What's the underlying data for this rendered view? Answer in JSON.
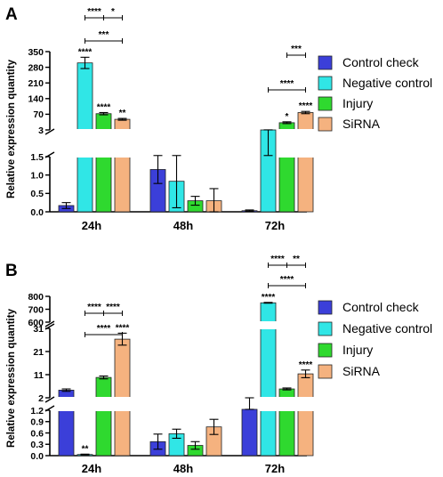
{
  "chart_data": [
    {
      "type": "bar",
      "panel_label": "A",
      "ylabel": "Relative expression quantity",
      "categories": [
        "24h",
        "48h",
        "72h"
      ],
      "series": [
        {
          "name": "Control check",
          "color": "#3b3fd9",
          "values": [
            0.17,
            1.15,
            0.03
          ],
          "errors": [
            0.08,
            0.38,
            0.02
          ]
        },
        {
          "name": "Negative control",
          "color": "#30e6e6",
          "values": [
            300,
            0.83,
            3
          ],
          "errors": [
            25,
            0.72,
            0.3
          ]
        },
        {
          "name": "Injury",
          "color": "#2fd92f",
          "values": [
            75,
            0.3,
            35
          ],
          "errors": [
            5,
            0.12,
            4
          ]
        },
        {
          "name": "SiRNA",
          "color": "#f5b27f",
          "values": [
            50,
            0.3,
            80
          ],
          "errors": [
            4,
            0.33,
            5
          ]
        }
      ],
      "y_axis": {
        "segments": [
          {
            "range": [
              0,
              1.5
            ],
            "ticks": [
              "0.0",
              "0.5",
              "1.0",
              "1.5"
            ]
          },
          {
            "range": [
              3,
              350
            ],
            "ticks": [
              "3",
              "70",
              "140",
              "210",
              "280",
              "350"
            ]
          }
        ]
      },
      "bar_labels": [
        [
          "",
          "",
          ""
        ],
        [
          "****",
          "",
          ""
        ],
        [
          "****",
          "",
          "*"
        ],
        [
          "**",
          "",
          "****"
        ]
      ],
      "brackets": [
        {
          "category": 0,
          "from_series": 1,
          "to_series": 3,
          "mid_series": 2,
          "label_left": "****",
          "label_right": "*"
        },
        {
          "category": 0,
          "from_series": 1,
          "to_series": 3,
          "label": "***"
        },
        {
          "category": 2,
          "from_series": 2,
          "to_series": 3,
          "label": "***"
        },
        {
          "category": 2,
          "from_series": 1,
          "to_series": 3,
          "label": "****"
        }
      ]
    },
    {
      "type": "bar",
      "panel_label": "B",
      "ylabel": "Relative expression quantity",
      "categories": [
        "24h",
        "48h",
        "72h"
      ],
      "series": [
        {
          "name": "Control check",
          "color": "#3b3fd9",
          "values": [
            5.2,
            0.37,
            1.8
          ],
          "errors": [
            0.5,
            0.2,
            0.2
          ]
        },
        {
          "name": "Negative control",
          "color": "#30e6e6",
          "values": [
            0.03,
            0.58,
            750
          ],
          "errors": [
            0.01,
            0.12,
            3
          ]
        },
        {
          "name": "Injury",
          "color": "#2fd92f",
          "values": [
            10.5,
            0.27,
            5.7
          ],
          "errors": [
            0.6,
            0.1,
            0.4
          ]
        },
        {
          "name": "SiRNA",
          "color": "#f5b27f",
          "values": [
            26.5,
            0.76,
            12
          ],
          "errors": [
            2.5,
            0.2,
            1.6
          ]
        }
      ],
      "y_axis": {
        "segments": [
          {
            "range": [
              0,
              1.2
            ],
            "ticks": [
              "0.0",
              "0.3",
              "0.6",
              "0.9",
              "1.2"
            ]
          },
          {
            "range": [
              2,
              31
            ],
            "ticks": [
              "2",
              "11",
              "21",
              "31"
            ]
          },
          {
            "range": [
              600,
              800
            ],
            "ticks": [
              "600",
              "700",
              "800"
            ]
          }
        ]
      },
      "bar_labels": [
        [
          "",
          "",
          ""
        ],
        [
          "**",
          "",
          "****"
        ],
        [
          "",
          "",
          ""
        ],
        [
          "****",
          "",
          "****"
        ]
      ],
      "brackets": [
        {
          "category": 0,
          "from_series": 1,
          "to_series": 3,
          "mid_series": 2,
          "label_left": "****",
          "label_right": "****"
        },
        {
          "category": 0,
          "from_series": 1,
          "to_series": 3,
          "label": "****"
        },
        {
          "category": 2,
          "from_series": 1,
          "to_series": 3,
          "mid_series": 2,
          "label_left": "****",
          "label_right": "**"
        },
        {
          "category": 2,
          "from_series": 1,
          "to_series": 3,
          "label": "****"
        }
      ]
    }
  ]
}
